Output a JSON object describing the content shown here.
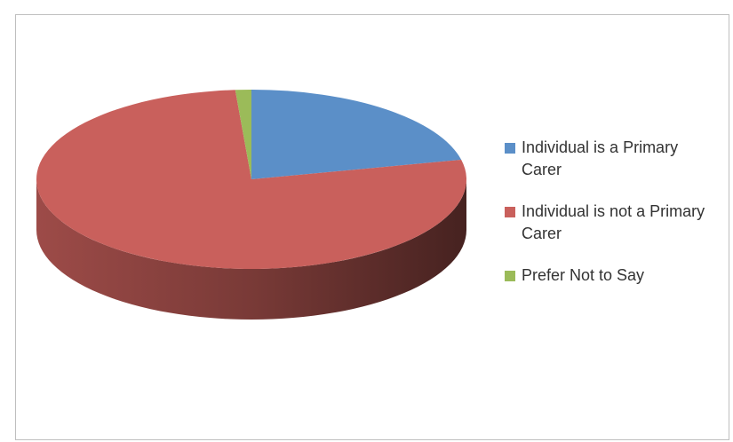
{
  "chart_data": {
    "type": "pie",
    "categories": [
      "Individual is a Primary Carer",
      "Individual is not a Primary Carer",
      "Prefer Not to Say"
    ],
    "values": [
      21.5,
      77.3,
      1.2
    ],
    "colors": [
      "#5b8fc8",
      "#c9605c",
      "#9bbb59"
    ],
    "legend": "right"
  }
}
